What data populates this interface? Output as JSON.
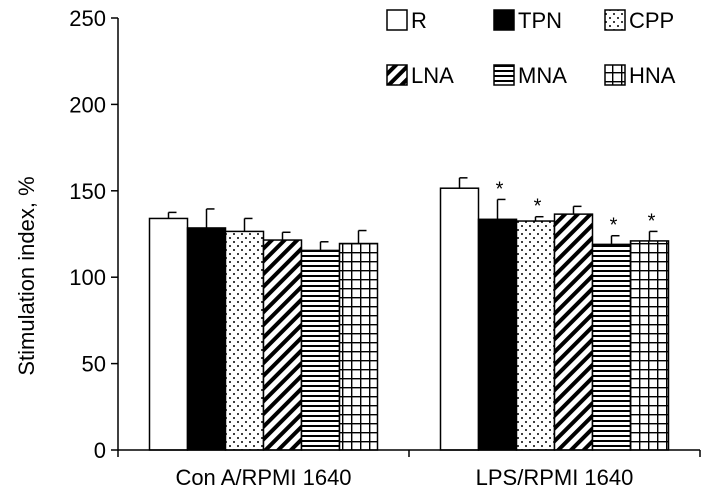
{
  "chart_data": {
    "type": "bar",
    "title": "",
    "xlabel": "",
    "ylabel": "Stimulation index, %",
    "ylim": [
      0,
      250
    ],
    "yticks": [
      0,
      50,
      100,
      150,
      200,
      250
    ],
    "grid": false,
    "legend_position": "top-right",
    "categories": [
      "Con A/RPMI 1640",
      "LPS/RPMI 1640"
    ],
    "series": [
      {
        "name": "R",
        "pattern": "white",
        "values": [
          134,
          151.5
        ],
        "errors": [
          3.5,
          6
        ],
        "significant": [
          false,
          false
        ]
      },
      {
        "name": "TPN",
        "pattern": "black",
        "values": [
          128.5,
          133.5
        ],
        "errors": [
          11,
          11.5
        ],
        "significant": [
          false,
          true
        ]
      },
      {
        "name": "CPP",
        "pattern": "dots",
        "values": [
          126.5,
          132.5
        ],
        "errors": [
          7.5,
          2.5
        ],
        "significant": [
          false,
          true
        ]
      },
      {
        "name": "LNA",
        "pattern": "diagonal",
        "values": [
          121.5,
          136.5
        ],
        "errors": [
          4.5,
          4.5
        ],
        "significant": [
          false,
          false
        ]
      },
      {
        "name": "MNA",
        "pattern": "horizontal",
        "values": [
          115.5,
          119
        ],
        "errors": [
          5,
          5
        ],
        "significant": [
          false,
          true
        ]
      },
      {
        "name": "HNA",
        "pattern": "grid",
        "values": [
          119.5,
          121
        ],
        "errors": [
          7.5,
          5.5
        ],
        "significant": [
          false,
          true
        ]
      }
    ],
    "significance_marker": "*"
  }
}
